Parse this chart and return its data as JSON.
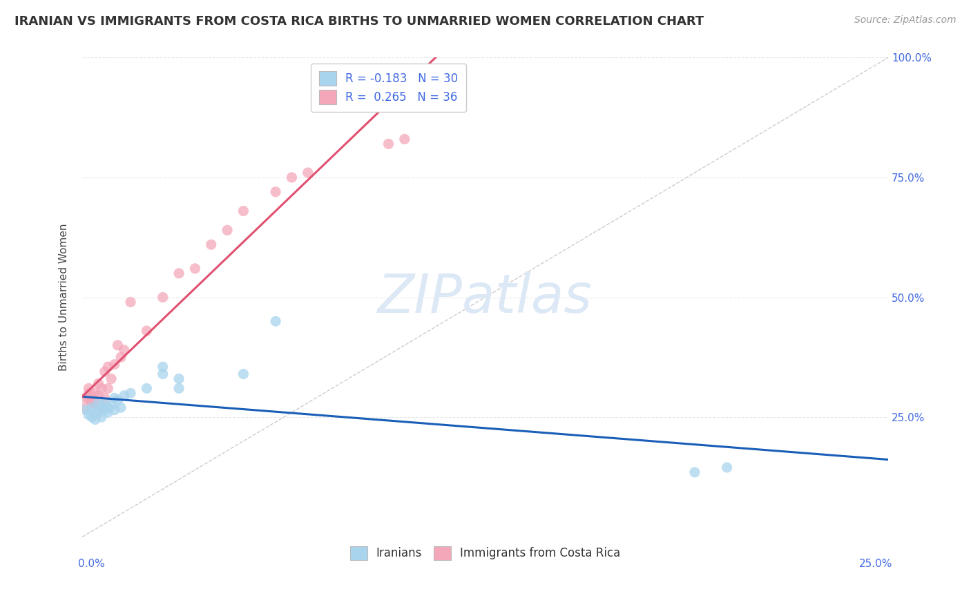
{
  "title": "IRANIAN VS IMMIGRANTS FROM COSTA RICA BIRTHS TO UNMARRIED WOMEN CORRELATION CHART",
  "source": "Source: ZipAtlas.com",
  "legend_iranians": "Iranians",
  "legend_costa_rica": "Immigrants from Costa Rica",
  "R_iranians": -0.183,
  "N_iranians": 30,
  "R_costa_rica": 0.265,
  "N_costa_rica": 36,
  "color_iranians": "#a8d4ed",
  "color_costa_rica": "#f4a7b9",
  "color_trend_iranians": "#1a5eb8",
  "color_trend_costa_rica": "#e05070",
  "iranians_x": [
    0.001,
    0.002,
    0.003,
    0.003,
    0.004,
    0.004,
    0.005,
    0.005,
    0.006,
    0.006,
    0.007,
    0.007,
    0.008,
    0.008,
    0.009,
    0.01,
    0.01,
    0.011,
    0.012,
    0.013,
    0.015,
    0.02,
    0.025,
    0.025,
    0.03,
    0.03,
    0.05,
    0.06,
    0.19,
    0.2
  ],
  "iranians_y": [
    0.265,
    0.255,
    0.27,
    0.25,
    0.26,
    0.245,
    0.28,
    0.26,
    0.27,
    0.25,
    0.265,
    0.28,
    0.26,
    0.27,
    0.275,
    0.29,
    0.265,
    0.285,
    0.27,
    0.295,
    0.3,
    0.31,
    0.34,
    0.355,
    0.31,
    0.33,
    0.34,
    0.45,
    0.135,
    0.145
  ],
  "costa_rica_x": [
    0.001,
    0.001,
    0.002,
    0.002,
    0.002,
    0.003,
    0.003,
    0.003,
    0.004,
    0.004,
    0.005,
    0.005,
    0.006,
    0.006,
    0.007,
    0.007,
    0.008,
    0.008,
    0.009,
    0.01,
    0.011,
    0.012,
    0.013,
    0.015,
    0.02,
    0.025,
    0.03,
    0.035,
    0.04,
    0.045,
    0.05,
    0.06,
    0.065,
    0.07,
    0.095,
    0.1
  ],
  "costa_rica_y": [
    0.27,
    0.29,
    0.29,
    0.31,
    0.3,
    0.28,
    0.285,
    0.295,
    0.28,
    0.3,
    0.295,
    0.32,
    0.27,
    0.31,
    0.29,
    0.345,
    0.31,
    0.355,
    0.33,
    0.36,
    0.4,
    0.375,
    0.39,
    0.49,
    0.43,
    0.5,
    0.55,
    0.56,
    0.61,
    0.64,
    0.68,
    0.72,
    0.75,
    0.76,
    0.82,
    0.83
  ],
  "xmin": 0.0,
  "xmax": 0.25,
  "ymin": 0.0,
  "ymax": 1.0,
  "background_color": "#ffffff",
  "grid_color": "#e8e8e8",
  "watermark": "ZIPatlas",
  "watermark_color": "#dce8f5"
}
